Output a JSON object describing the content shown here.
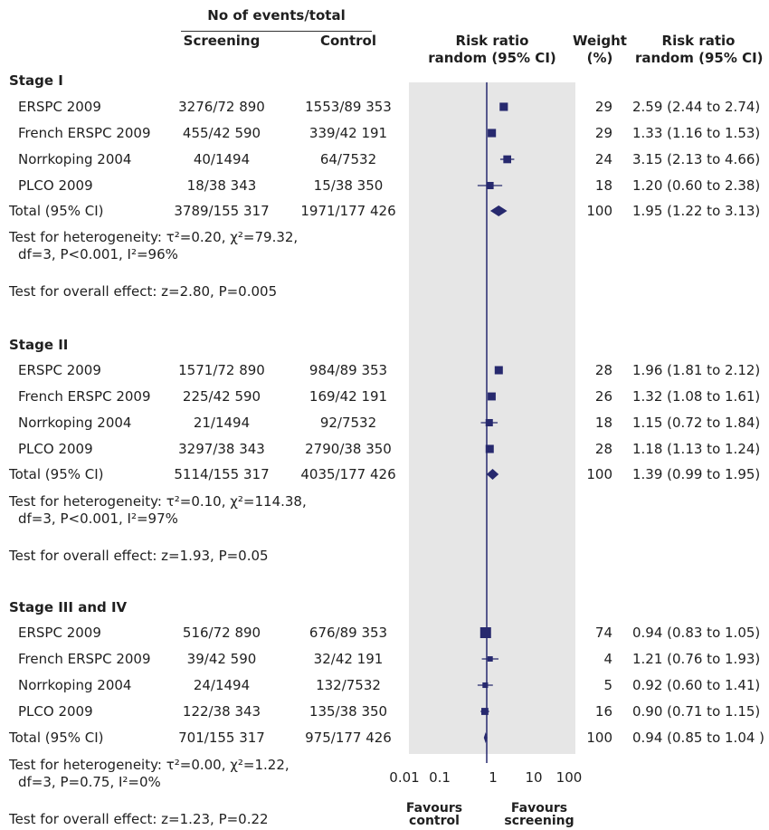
{
  "header": {
    "group_title": "No of events/total",
    "col_screening": "Screening",
    "col_control": "Control",
    "col_rr_line1": "Risk ratio",
    "col_rr_line2": "random (95% CI)",
    "col_weight_line1": "Weight",
    "col_weight_line2": "(%)",
    "col_rr2_line1": "Risk ratio",
    "col_rr2_line2": "random (95% CI)"
  },
  "colors": {
    "plot_background": "#e6e6e6",
    "marker": "#27296e",
    "null_line": "#27296e"
  },
  "chart_data": {
    "type": "forest",
    "x_scale": "log",
    "xlim": [
      0.01,
      100
    ],
    "x_ticks": [
      "0.01",
      "0.1",
      "1",
      "10",
      "100"
    ],
    "null_value": 1,
    "favours_left": [
      "Favours",
      "control"
    ],
    "favours_right": [
      "Favours",
      "screening"
    ],
    "groups": [
      {
        "title": "Stage I",
        "studies": [
          {
            "name": "ERSPC 2009",
            "screening": "3276/72 890",
            "control": "1553/89 353",
            "weight": "29",
            "ci_text": "2.59 (2.44 to 2.74)",
            "rr": 2.59,
            "lo": 2.44,
            "hi": 2.74
          },
          {
            "name": "French ERSPC 2009",
            "screening": "455/42 590",
            "control": "339/42 191",
            "weight": "29",
            "ci_text": "1.33 (1.16 to 1.53)",
            "rr": 1.33,
            "lo": 1.16,
            "hi": 1.53
          },
          {
            "name": "Norrkoping 2004",
            "screening": "40/1494",
            "control": "64/7532",
            "weight": "24",
            "ci_text": "3.15 (2.13 to 4.66)",
            "rr": 3.15,
            "lo": 2.13,
            "hi": 4.66
          },
          {
            "name": "PLCO 2009",
            "screening": "18/38 343",
            "control": "15/38 350",
            "weight": "18",
            "ci_text": "1.20 (0.60 to 2.38)",
            "rr": 1.2,
            "lo": 0.6,
            "hi": 2.38
          }
        ],
        "total": {
          "name": "Total (95% CI)",
          "screening": "3789/155 317",
          "control": "1971/177 426",
          "weight": "100",
          "ci_text": "1.95 (1.22 to 3.13)",
          "rr": 1.95,
          "lo": 1.22,
          "hi": 3.13
        },
        "heterogeneity_line1": "Test for heterogeneity: τ²=0.20, χ²=79.32,",
        "heterogeneity_line2": "df=3, P<0.001, I²=96%",
        "overall_effect": "Test for overall effect: z=2.80, P=0.005"
      },
      {
        "title": "Stage II",
        "studies": [
          {
            "name": "ERSPC 2009",
            "screening": "1571/72 890",
            "control": "984/89 353",
            "weight": "28",
            "ci_text": "1.96 (1.81 to 2.12)",
            "rr": 1.96,
            "lo": 1.81,
            "hi": 2.12
          },
          {
            "name": "French ERSPC 2009",
            "screening": "225/42 590",
            "control": "169/42 191",
            "weight": "26",
            "ci_text": "1.32 (1.08 to 1.61)",
            "rr": 1.32,
            "lo": 1.08,
            "hi": 1.61
          },
          {
            "name": "Norrkoping 2004",
            "screening": "21/1494",
            "control": "92/7532",
            "weight": "18",
            "ci_text": "1.15 (0.72 to 1.84)",
            "rr": 1.15,
            "lo": 0.72,
            "hi": 1.84
          },
          {
            "name": "PLCO 2009",
            "screening": "3297/38 343",
            "control": "2790/38 350",
            "weight": "28",
            "ci_text": "1.18 (1.13 to 1.24)",
            "rr": 1.18,
            "lo": 1.13,
            "hi": 1.24
          }
        ],
        "total": {
          "name": "Total (95% CI)",
          "screening": "5114/155 317",
          "control": "4035/177 426",
          "weight": "100",
          "ci_text": "1.39 (0.99 to 1.95)",
          "rr": 1.39,
          "lo": 0.99,
          "hi": 1.95
        },
        "heterogeneity_line1": "Test for heterogeneity: τ²=0.10, χ²=114.38,",
        "heterogeneity_line2": "df=3, P<0.001, I²=97%",
        "overall_effect": "Test for overall effect: z=1.93, P=0.05"
      },
      {
        "title": "Stage III and IV",
        "studies": [
          {
            "name": "ERSPC 2009",
            "screening": "516/72 890",
            "control": "676/89 353",
            "weight": "74",
            "ci_text": "0.94 (0.83 to 1.05)",
            "rr": 0.94,
            "lo": 0.83,
            "hi": 1.05
          },
          {
            "name": "French ERSPC 2009",
            "screening": "39/42 590",
            "control": "32/42 191",
            "weight": "4",
            "ci_text": "1.21 (0.76 to 1.93)",
            "rr": 1.21,
            "lo": 0.76,
            "hi": 1.93
          },
          {
            "name": "Norrkoping 2004",
            "screening": "24/1494",
            "control": "132/7532",
            "weight": "5",
            "ci_text": "0.92 (0.60 to 1.41)",
            "rr": 0.92,
            "lo": 0.6,
            "hi": 1.41
          },
          {
            "name": "PLCO 2009",
            "screening": "122/38 343",
            "control": "135/38 350",
            "weight": "16",
            "ci_text": "0.90 (0.71 to 1.15)",
            "rr": 0.9,
            "lo": 0.71,
            "hi": 1.15
          }
        ],
        "total": {
          "name": "Total (95% CI)",
          "screening": "701/155 317",
          "control": "975/177 426",
          "weight": "100",
          "ci_text": "0.94 (0.85 to 1.04 )",
          "rr": 0.94,
          "lo": 0.85,
          "hi": 1.04
        },
        "heterogeneity_line1": "Test for heterogeneity: τ²=0.00, χ²=1.22,",
        "heterogeneity_line2": "df=3, P=0.75, I²=0%",
        "overall_effect": "Test for overall effect: z=1.23, P=0.22"
      }
    ]
  }
}
